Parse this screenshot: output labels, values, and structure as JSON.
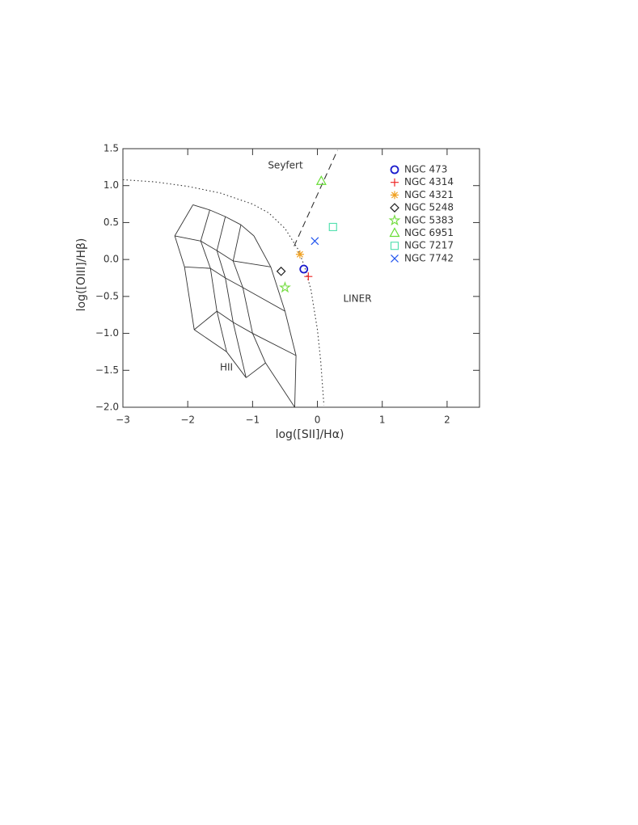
{
  "chart_data": {
    "type": "scatter",
    "x_label": "log([SII]/Hα)",
    "y_label": "log([OIII]/Hβ)",
    "xlim": [
      -3,
      2.5
    ],
    "ylim": [
      -2,
      1.5
    ],
    "xticks": [
      {
        "value": -3,
        "label": "−3"
      },
      {
        "value": -2,
        "label": "−2"
      },
      {
        "value": -1,
        "label": "−1"
      },
      {
        "value": 0,
        "label": "0"
      },
      {
        "value": 1,
        "label": "1"
      },
      {
        "value": 2,
        "label": "2"
      }
    ],
    "yticks": [
      {
        "value": -2,
        "label": "−2.0"
      },
      {
        "value": -1.5,
        "label": "−1.5"
      },
      {
        "value": -1,
        "label": "−1.0"
      },
      {
        "value": -0.5,
        "label": "−0.5"
      },
      {
        "value": 0,
        "label": "0.0"
      },
      {
        "value": 0.5,
        "label": "0.5"
      },
      {
        "value": 1,
        "label": "1.0"
      },
      {
        "value": 1.5,
        "label": "1.5"
      }
    ],
    "annotations": [
      "Seyfert",
      "LINER",
      "HII"
    ],
    "series": [
      {
        "name": "NGC 473",
        "color": "#1a1acc",
        "marker": "circle",
        "x": [
          -0.21
        ],
        "values": [
          -0.13
        ]
      },
      {
        "name": "NGC 4314",
        "color": "#ee2222",
        "marker": "plus",
        "x": [
          -0.14
        ],
        "values": [
          -0.23
        ]
      },
      {
        "name": "NGC 4321",
        "color": "#f0a020",
        "marker": "asterisk",
        "x": [
          -0.27
        ],
        "values": [
          0.07
        ]
      },
      {
        "name": "NGC 5248",
        "color": "#222222",
        "marker": "diamond",
        "x": [
          -0.56
        ],
        "values": [
          -0.16
        ]
      },
      {
        "name": "NGC 5383",
        "color": "#77dd44",
        "marker": "star",
        "x": [
          -0.5
        ],
        "values": [
          -0.38
        ]
      },
      {
        "name": "NGC 6951",
        "color": "#66dd33",
        "marker": "triangle",
        "x": [
          0.06
        ],
        "values": [
          1.06
        ]
      },
      {
        "name": "NGC 7217",
        "color": "#55e0b0",
        "marker": "square",
        "x": [
          0.24
        ],
        "values": [
          0.44
        ]
      },
      {
        "name": "NGC 7742",
        "color": "#2255ee",
        "marker": "x",
        "x": [
          -0.04
        ],
        "values": [
          0.25
        ]
      }
    ],
    "lines": [
      {
        "style": "dotted",
        "x": [
          -3,
          -2.5,
          -2,
          -1.5,
          -1,
          -0.75,
          -0.5,
          -0.3,
          -0.2,
          -0.1,
          0,
          0.05,
          0.1
        ],
        "y": [
          1.08,
          1.05,
          0.99,
          0.9,
          0.75,
          0.63,
          0.42,
          0.14,
          -0.09,
          -0.41,
          -0.95,
          -1.37,
          -1.97
        ]
      },
      {
        "style": "dashed",
        "x": [
          -0.36,
          0.31
        ],
        "y": [
          0.18,
          1.48
        ]
      }
    ],
    "model_grid": {
      "x": [
        [
          -1.92,
          -1.66,
          -1.42,
          -1.18,
          -0.98
        ],
        [
          -2.2,
          -1.8,
          -1.55,
          -1.3,
          -0.72
        ],
        [
          -2.05,
          -1.65,
          -1.42,
          -1.15,
          -0.5
        ],
        [
          -1.9,
          -1.55,
          -1.3,
          -1.0,
          -0.33
        ],
        [
          -1.9,
          -1.4,
          -1.1,
          -0.8,
          -0.35
        ]
      ],
      "y": [
        [
          0.74,
          0.67,
          0.58,
          0.47,
          0.32
        ],
        [
          0.32,
          0.25,
          0.12,
          -0.02,
          -0.1
        ],
        [
          -0.1,
          -0.12,
          -0.25,
          -0.38,
          -0.7
        ],
        [
          -0.95,
          -0.7,
          -0.85,
          -1.0,
          -1.3
        ],
        [
          -0.95,
          -1.25,
          -1.6,
          -1.4,
          -2.0
        ]
      ]
    }
  }
}
